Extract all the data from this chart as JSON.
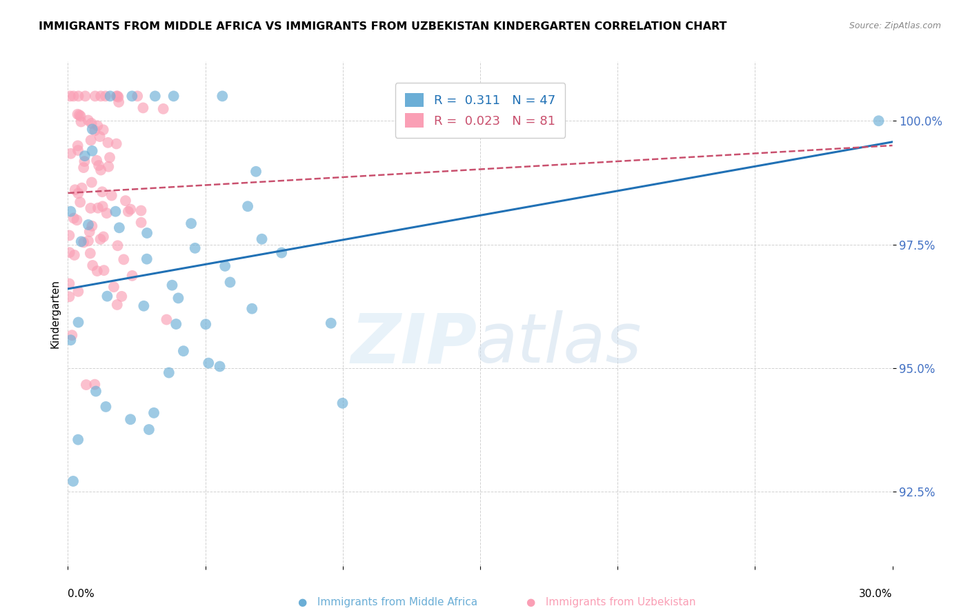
{
  "title": "IMMIGRANTS FROM MIDDLE AFRICA VS IMMIGRANTS FROM UZBEKISTAN KINDERGARTEN CORRELATION CHART",
  "source": "Source: ZipAtlas.com",
  "ylabel": "Kindergarten",
  "yticks": [
    92.5,
    95.0,
    97.5,
    100.0
  ],
  "xmin": 0.0,
  "xmax": 0.3,
  "ymin": 91.0,
  "ymax": 101.2,
  "blue_R": 0.311,
  "blue_N": 47,
  "pink_R": 0.023,
  "pink_N": 81,
  "blue_color": "#6baed6",
  "pink_color": "#fa9fb5",
  "blue_line_color": "#2171b5",
  "pink_line_color": "#c9506e"
}
